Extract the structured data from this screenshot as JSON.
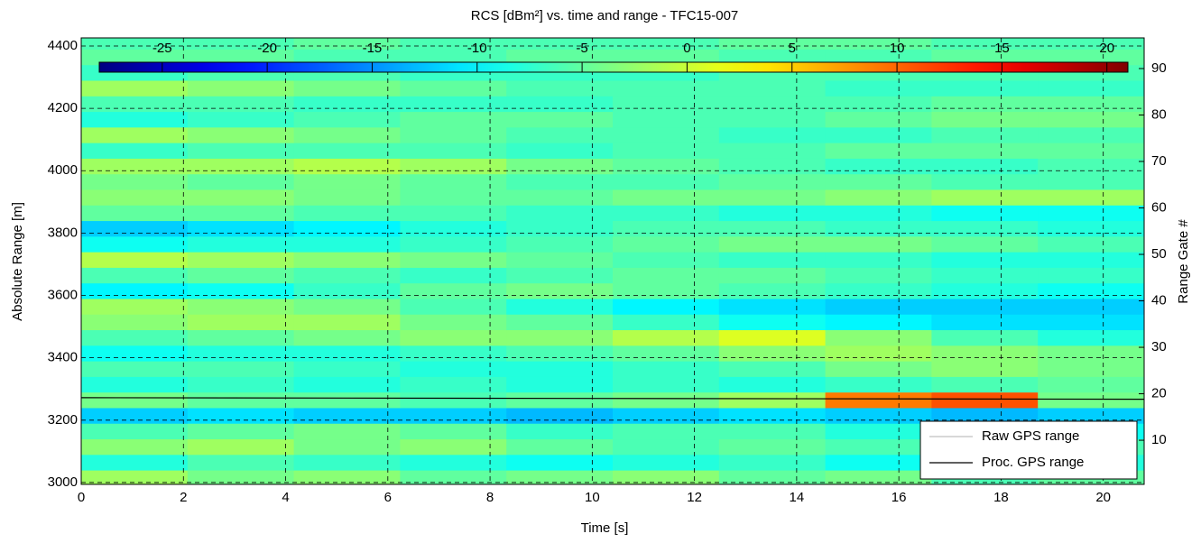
{
  "chart_data": {
    "type": "heatmap",
    "title": "RCS [dBm²] vs. time and range - TFC15-007",
    "xlabel": "Time [s]",
    "ylabel": "Absolute Range [m]",
    "y2label": "Range Gate #",
    "xlim": [
      0,
      20.8
    ],
    "ylim": [
      2994,
      4426
    ],
    "y2lim": [
      0.5,
      96.6
    ],
    "xticks": [
      0,
      2,
      4,
      6,
      8,
      10,
      12,
      14,
      16,
      18,
      20
    ],
    "yticks": [
      3000,
      3200,
      3400,
      3600,
      3800,
      4000,
      4200,
      4400
    ],
    "y2ticks": [
      10,
      20,
      30,
      40,
      50,
      60,
      70,
      80,
      90
    ],
    "grid": true,
    "colormap": "jet",
    "clim": [
      -28,
      21
    ],
    "cticks": [
      -25,
      -20,
      -15,
      -10,
      -5,
      0,
      5,
      10,
      15,
      20
    ],
    "x_edges": [
      0,
      2.08,
      4.16,
      6.24,
      8.32,
      10.4,
      12.48,
      14.56,
      16.64,
      18.72,
      20.8
    ],
    "y_edges": [
      2990,
      3040,
      3090,
      3140,
      3190,
      3240,
      3290,
      3340,
      3390,
      3440,
      3490,
      3540,
      3590,
      3640,
      3690,
      3740,
      3790,
      3840,
      3890,
      3940,
      3990,
      4040,
      4090,
      4140,
      4190,
      4240,
      4290,
      4340,
      4390,
      4440
    ],
    "z": [
      [
        -2,
        -4,
        -3,
        -5,
        -4,
        -3,
        -5,
        -4,
        -6,
        -5
      ],
      [
        -8,
        -6,
        -7,
        -8,
        -9,
        -8,
        -7,
        -9,
        -8,
        -8
      ],
      [
        -3,
        -2,
        -4,
        -3,
        -5,
        -6,
        -5,
        -6,
        -7,
        -6
      ],
      [
        -6,
        -5,
        -4,
        -5,
        -7,
        -6,
        -6,
        -8,
        -8,
        -9
      ],
      [
        -12,
        -11,
        -12,
        -12,
        -13,
        -12,
        -11,
        -12,
        -13,
        -12
      ],
      [
        -4,
        -5,
        -5,
        -6,
        -5,
        -4,
        -2,
        9,
        11,
        -4
      ],
      [
        -8,
        -7,
        -8,
        -7,
        -8,
        -7,
        -8,
        -7,
        -6,
        -5
      ],
      [
        -6,
        -6,
        -7,
        -8,
        -8,
        -7,
        -6,
        -4,
        -3,
        -4
      ],
      [
        -9,
        -8,
        -8,
        -7,
        -6,
        -5,
        -3,
        -2,
        -3,
        -4
      ],
      [
        -6,
        -5,
        -4,
        -3,
        -3,
        -1,
        1,
        -3,
        -6,
        -8
      ],
      [
        -3,
        -2,
        -2,
        -4,
        -5,
        -7,
        -9,
        -10,
        -11,
        -11
      ],
      [
        -2,
        -3,
        -4,
        -6,
        -8,
        -10,
        -11,
        -12,
        -12,
        -12
      ],
      [
        -10,
        -9,
        -7,
        -5,
        -4,
        -5,
        -6,
        -7,
        -8,
        -9
      ],
      [
        -6,
        -5,
        -6,
        -7,
        -6,
        -5,
        -5,
        -6,
        -7,
        -7
      ],
      [
        -1,
        -2,
        -3,
        -4,
        -5,
        -6,
        -7,
        -7,
        -8,
        -8
      ],
      [
        -9,
        -8,
        -8,
        -7,
        -6,
        -5,
        -4,
        -4,
        -5,
        -6
      ],
      [
        -12,
        -11,
        -10,
        -8,
        -7,
        -6,
        -6,
        -7,
        -7,
        -8
      ],
      [
        -5,
        -5,
        -6,
        -6,
        -7,
        -7,
        -8,
        -8,
        -9,
        -9
      ],
      [
        -3,
        -3,
        -4,
        -5,
        -5,
        -4,
        -4,
        -3,
        -2,
        -2
      ],
      [
        -4,
        -5,
        -4,
        -5,
        -6,
        -6,
        -5,
        -5,
        -6,
        -6
      ],
      [
        -2,
        -2,
        -1,
        -2,
        -4,
        -5,
        -6,
        -7,
        -7,
        -6
      ],
      [
        -7,
        -6,
        -6,
        -6,
        -7,
        -6,
        -6,
        -5,
        -5,
        -5
      ],
      [
        -2,
        -3,
        -4,
        -5,
        -6,
        -6,
        -7,
        -7,
        -6,
        -6
      ],
      [
        -8,
        -7,
        -6,
        -5,
        -5,
        -6,
        -6,
        -5,
        -4,
        -4
      ],
      [
        -6,
        -6,
        -7,
        -7,
        -7,
        -6,
        -6,
        -6,
        -5,
        -5
      ],
      [
        -2,
        -3,
        -4,
        -5,
        -6,
        -6,
        -6,
        -7,
        -7,
        -7
      ],
      [
        -7,
        -6,
        -6,
        -7,
        -7,
        -7,
        -6,
        -6,
        -6,
        -6
      ],
      [
        -5,
        -5,
        -6,
        -6,
        -5,
        -5,
        -6,
        -6,
        -5,
        -5
      ],
      [
        -6,
        -6,
        -5,
        -6,
        -6,
        -6,
        -5,
        -5,
        -6,
        -6
      ]
    ],
    "lines": {
      "x": [
        0,
        20.8
      ],
      "series": [
        {
          "name": "Raw GPS range",
          "color": "#999999",
          "values": [
            3272,
            3267
          ]
        },
        {
          "name": "Proc. GPS range",
          "color": "#000000",
          "values": [
            3272,
            3267
          ]
        }
      ]
    },
    "legend": "lower right"
  }
}
